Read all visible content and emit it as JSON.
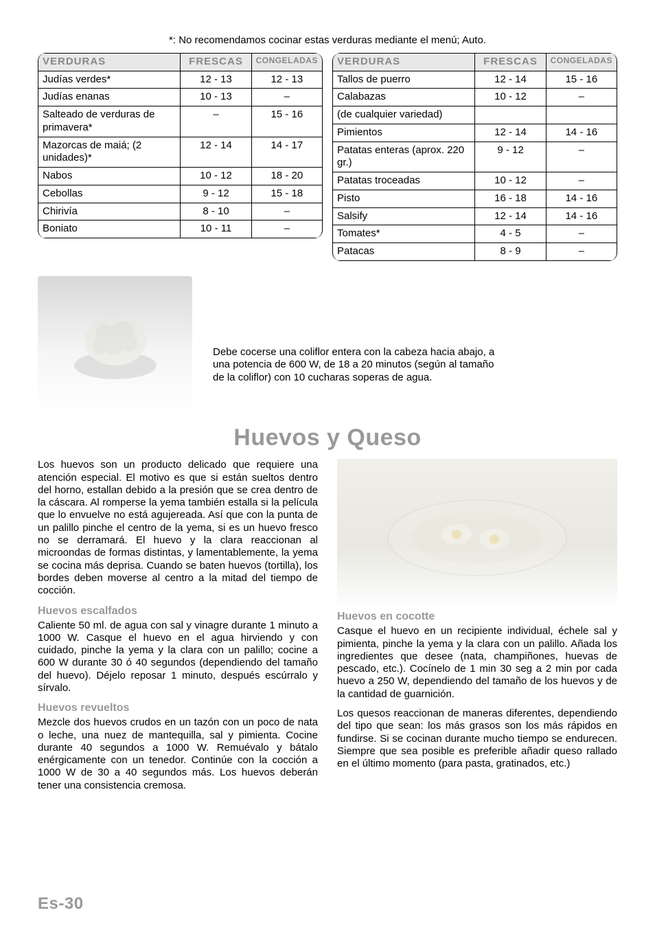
{
  "note": "*: No recomendamos cocinar estas verduras mediante el menú; Auto.",
  "table_headers": [
    "VERDURAS",
    "FRESCAS",
    "CONGELADAS"
  ],
  "table_left": [
    [
      "Judías verdes*",
      "12 - 13",
      "12 - 13"
    ],
    [
      "Judías enanas",
      "10 - 13",
      "–"
    ],
    [
      "Salteado de verduras de primavera*",
      "–",
      "15 - 16"
    ],
    [
      "Mazorcas de maiá; (2 unidades)*",
      "12 - 14",
      "14 - 17"
    ],
    [
      "Nabos",
      "10 - 12",
      "18 - 20"
    ],
    [
      "Cebollas",
      "9 - 12",
      "15 - 18"
    ],
    [
      "Chirivía",
      "8 - 10",
      "–"
    ],
    [
      "Boniato",
      "10 - 11",
      "–"
    ]
  ],
  "table_right": [
    [
      "Tallos de puerro",
      "12 - 14",
      "15 - 16"
    ],
    [
      "Calabazas",
      "10 - 12",
      "–"
    ],
    [
      "(de cualquier variedad)",
      "",
      ""
    ],
    [
      "Pimientos",
      "12 - 14",
      "14 - 16"
    ],
    [
      "Patatas enteras (aprox. 220 gr.)",
      "9 - 12",
      "–"
    ],
    [
      "Patatas troceadas",
      "10 - 12",
      "–"
    ],
    [
      "Pisto",
      "16 - 18",
      "14 - 16"
    ],
    [
      "Salsify",
      "12 - 14",
      "14 - 16"
    ],
    [
      "Tomates*",
      "4 - 5",
      "–"
    ],
    [
      "Patacas",
      "8 - 9",
      "–"
    ]
  ],
  "cauliflower_text": "Debe cocerse una coliflor entera con la cabeza hacia abajo, a una potencia de 600 W, de 18 a 20 minutos (según al tamaño de la coliflor) con 10 cucharas soperas de agua.",
  "big_heading": "Huevos y Queso",
  "eggs_intro": "Los huevos son un producto delicado que requiere una atención especial. El motivo es que si están sueltos dentro del horno, estallan debido a la presión que se crea dentro de la cáscara. Al romperse la yema también estalla si la película que lo envuelve no está agujereada. Así que con la punta de un palillo pinche el centro de la yema, si es un huevo fresco no se derramará. El huevo y la clara reaccionan al microondas de formas distintas, y lamentablemente, la yema se cocina más deprisa. Cuando se baten huevos (tortilla), los bordes deben moverse al centro a la mitad del tiempo de cocción.",
  "escalfados_head": "Huevos escalfados",
  "escalfados_text": "Caliente 50 ml. de agua con sal y vinagre durante 1 minuto a 1000 W. Casque el huevo en el agua hirviendo y con cuidado, pinche la yema y la clara con un palillo; cocine a 600 W durante 30 ó 40 segundos (dependiendo del tamaño del huevo). Déjelo reposar 1 minuto, después escúrralo y sírvalo.",
  "revueltos_head": "Huevos revueltos",
  "revueltos_text": "Mezcle dos huevos crudos en un tazón con un poco de nata o leche, una nuez de mantequilla, sal y pimienta. Cocine durante 40 segundos a 1000 W. Remuévalo y bátalo enérgicamente con un tenedor. Continúe con la cocción a 1000 W de 30 a 40 segundos más. Los huevos deberán tener una consistencia cremosa.",
  "cocotte_head": "Huevos en cocotte",
  "cocotte_text": "Casque el huevo en un recipiente individual, échele sal y pimienta, pinche la yema y la clara con un palillo. Añada los ingredientes que desee (nata, champiñones, huevas de pescado, etc.). Cocínelo de 1 min 30 seg a 2 min por cada huevo a 250 W, dependiendo del tamaño de los huevos y de la cantidad de guarnición.",
  "queso_text": "Los quesos reaccionan de maneras diferentes, dependiendo del tipo que sean: los más grasos son los más rápidos en fundirse. Si se cocinan durante mucho tiempo se endurecen. Siempre que sea posible es preferible añadir queso rallado en el último momento (para pasta, gratinados, etc.)",
  "page_number": "Es-30"
}
